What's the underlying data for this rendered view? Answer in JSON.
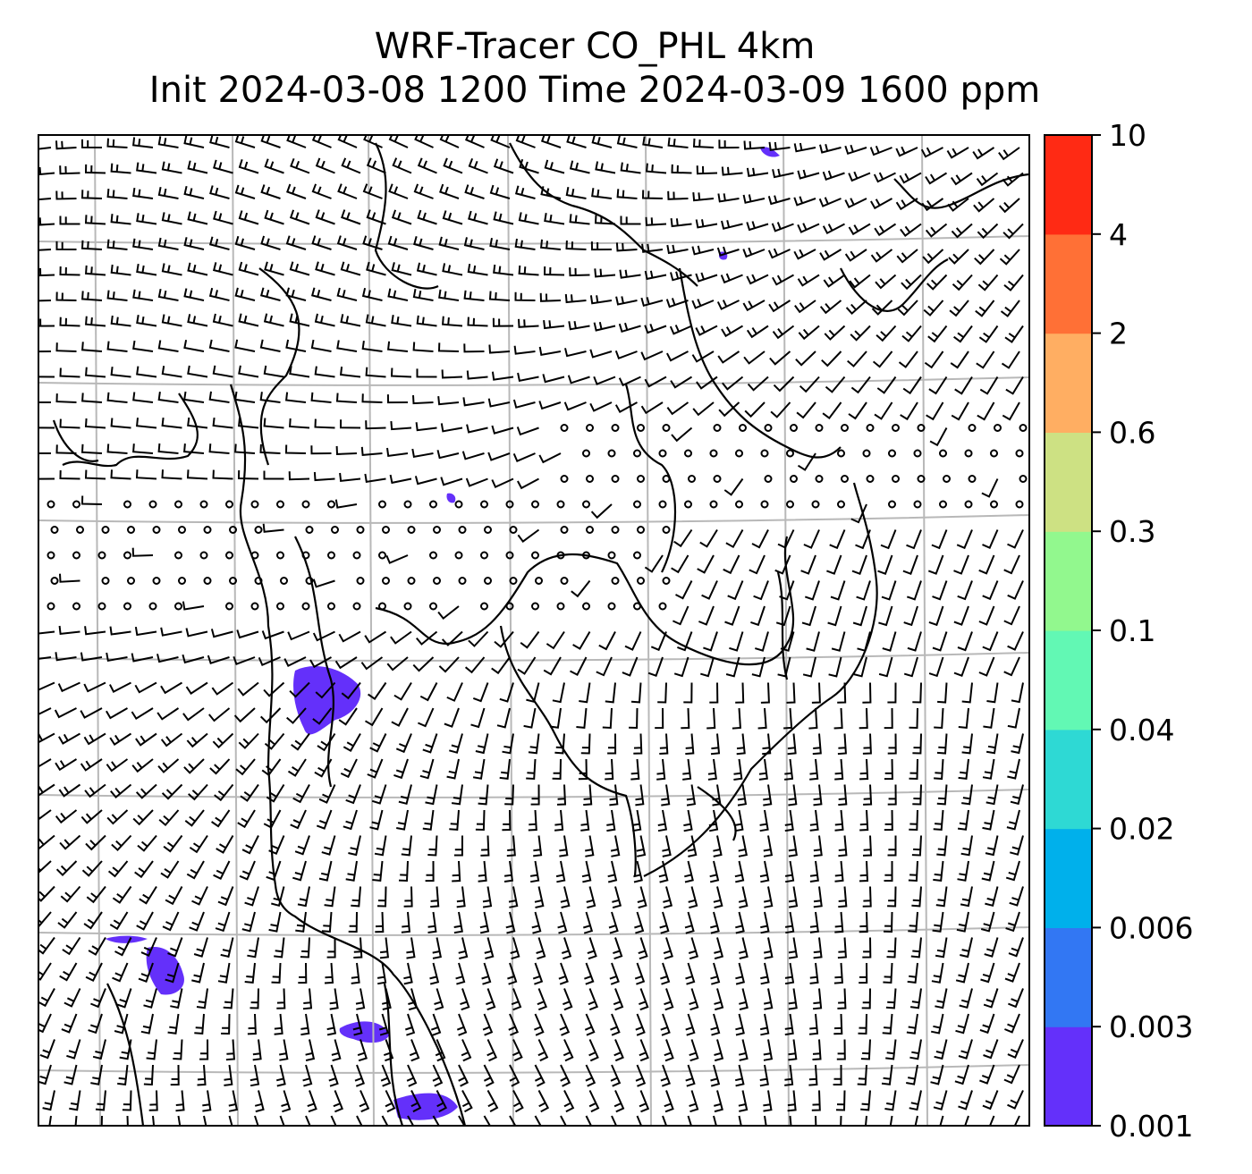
{
  "title": {
    "line1": "WRF-Tracer CO_PHL 4km",
    "line2": "Init 2024-03-08 1200 Time 2024-03-09 1600 ppm"
  },
  "colorbar": {
    "levels": [
      "0.001",
      "0.003",
      "0.006",
      "0.02",
      "0.04",
      "0.1",
      "0.3",
      "0.6",
      "2",
      "4",
      "10"
    ],
    "colors": [
      "#6430fa",
      "#3277f3",
      "#00b0eb",
      "#2ed9d4",
      "#62f8b4",
      "#92f88e",
      "#cde183",
      "#ffae62",
      "#ff7036",
      "#ff2a14"
    ]
  },
  "map": {
    "tracer_color": "#6430fa",
    "grid_color": "#b8b8b8",
    "barb_color": "#000000"
  }
}
